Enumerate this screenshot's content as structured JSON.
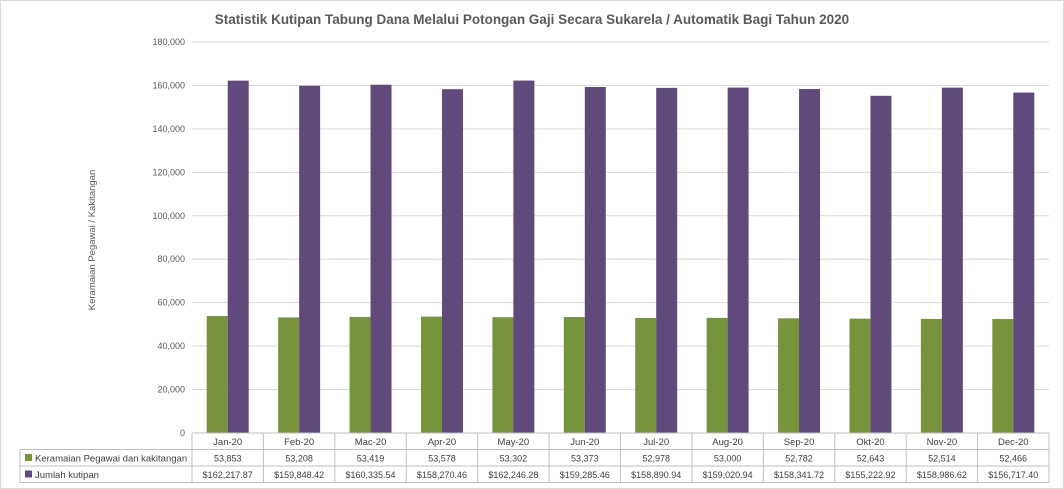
{
  "chart_data": {
    "type": "bar",
    "title": "Statistik Kutipan Tabung Dana Melalui Potongan Gaji Secara Sukarela / Automatik Bagi Tahun 2020",
    "ylabel": "Keramaian Pegawai / Kakitangan",
    "xlabel": "",
    "ylim": [
      0,
      180000
    ],
    "yticks": [
      0,
      20000,
      40000,
      60000,
      80000,
      100000,
      120000,
      140000,
      160000,
      180000
    ],
    "ytick_labels": [
      "0",
      "20,000",
      "40,000",
      "60,000",
      "80,000",
      "100,000",
      "120,000",
      "140,000",
      "160,000",
      "180,000"
    ],
    "grid": true,
    "legend": "data-table-left",
    "categories": [
      "Jan-20",
      "Feb-20",
      "Mac-20",
      "Apr-20",
      "May-20",
      "Jun-20",
      "Jul-20",
      "Aug-20",
      "Sep-20",
      "Okt-20",
      "Nov-20",
      "Dec-20"
    ],
    "series": [
      {
        "name": "Keramaian Pegawai dan kakitangan",
        "color": "#77933c",
        "values": [
          53853,
          53208,
          53419,
          53578,
          53302,
          53373,
          52978,
          53000,
          52782,
          52643,
          52514,
          52466
        ],
        "labels": [
          "53,853",
          "53,208",
          "53,419",
          "53,578",
          "53,302",
          "53,373",
          "52,978",
          "53,000",
          "52,782",
          "52,643",
          "52,514",
          "52,466"
        ]
      },
      {
        "name": "Jumlah kutipan",
        "color": "#604a7b",
        "values": [
          162217.87,
          159848.42,
          160335.54,
          158270.46,
          162246.28,
          159285.46,
          158890.94,
          159020.94,
          158341.72,
          155222.92,
          158986.62,
          156717.4
        ],
        "labels": [
          "$162,217.87",
          "$159,848.42",
          "$160,335.54",
          "$158,270.46",
          "$162,246.28",
          "$159,285.46",
          "$158,890.94",
          "$159,020.94",
          "$158,341.72",
          "$155,222.92",
          "$158,986.62",
          "$156,717.40"
        ]
      }
    ]
  }
}
